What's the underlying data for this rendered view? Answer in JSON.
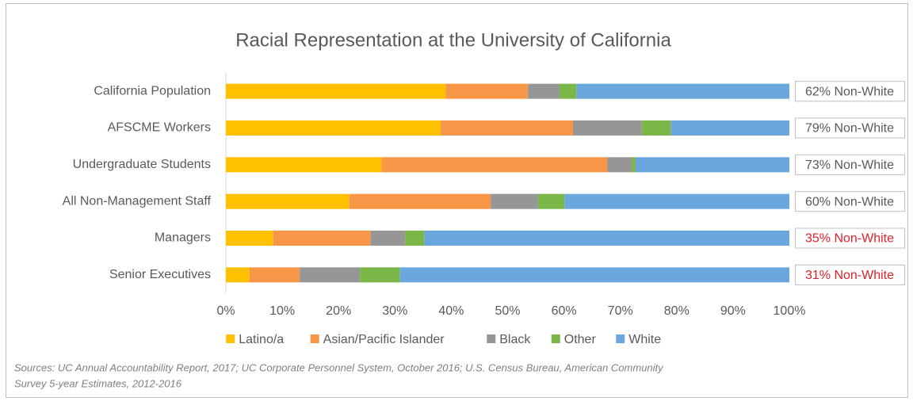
{
  "chart_data": {
    "type": "bar",
    "orientation": "horizontal",
    "stacked": true,
    "title": "Racial Representation at the University of California",
    "categories": [
      "California Population",
      "AFSCME Workers",
      "Undergraduate Students",
      "All Non-Management Staff",
      "Managers",
      "Senior Executives"
    ],
    "series": [
      {
        "name": "Latino/a",
        "color": "#ffc000",
        "values": [
          39.0,
          38.1,
          27.6,
          21.9,
          8.4,
          4.2
        ]
      },
      {
        "name": "Asian/Pacific Islander",
        "color": "#f79646",
        "values": [
          14.6,
          23.5,
          40.1,
          25.1,
          17.3,
          8.9
        ]
      },
      {
        "name": "Black",
        "color": "#969696",
        "values": [
          5.6,
          12.2,
          4.3,
          8.4,
          6.1,
          10.7
        ]
      },
      {
        "name": "Other",
        "color": "#7ab648",
        "values": [
          3.0,
          5.2,
          0.7,
          4.7,
          3.4,
          7.1
        ]
      },
      {
        "name": "White",
        "color": "#6aa7dc",
        "values": [
          37.8,
          21.0,
          27.3,
          39.9,
          64.8,
          69.1
        ]
      }
    ],
    "xlim": [
      0,
      100
    ],
    "xticks": [
      {
        "value": 0,
        "label": "0%"
      },
      {
        "value": 10,
        "label": "10%"
      },
      {
        "value": 20,
        "label": "20%"
      },
      {
        "value": 30,
        "label": "30%"
      },
      {
        "value": 40,
        "label": "40%"
      },
      {
        "value": 50,
        "label": "50%"
      },
      {
        "value": 60,
        "label": "60%"
      },
      {
        "value": 70,
        "label": "70%"
      },
      {
        "value": 80,
        "label": "80%"
      },
      {
        "value": 90,
        "label": "90%"
      },
      {
        "value": 100,
        "label": "100%"
      }
    ],
    "annotations": [
      {
        "text": "62% Non-White",
        "color": "#595959"
      },
      {
        "text": "79% Non-White",
        "color": "#595959"
      },
      {
        "text": "73% Non-White",
        "color": "#595959"
      },
      {
        "text": "60% Non-White",
        "color": "#595959"
      },
      {
        "text": "35% Non-White",
        "color": "#e0202a"
      },
      {
        "text": "31% Non-White",
        "color": "#e0202a"
      }
    ],
    "legend": "bottom",
    "source": [
      "Sources: UC Annual Accountability Report, 2017; UC Corporate Personnel System, October 2016; U.S. Census Bureau, American Community",
      "Survey 5-year Estimates, 2012-2016"
    ]
  }
}
